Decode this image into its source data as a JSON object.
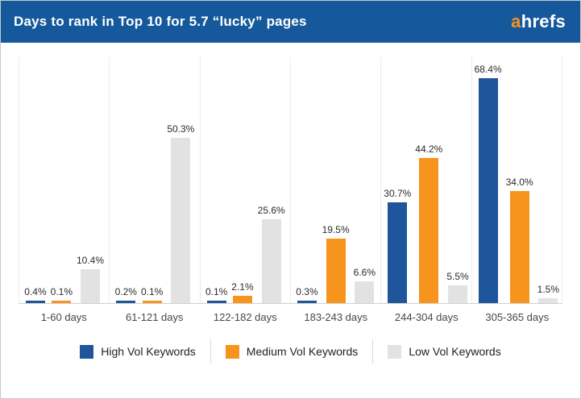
{
  "header": {
    "title": "Days to rank in Top 10 for 5.7 “lucky” pages",
    "logo_a": "a",
    "logo_rest": "hrefs"
  },
  "chart_data": {
    "type": "bar",
    "title": "Days to rank in Top 10 for 5.7 “lucky” pages",
    "categories": [
      "1-60 days",
      "61-121 days",
      "122-182 days",
      "183-243 days",
      "244-304 days",
      "305-365 days"
    ],
    "series": [
      {
        "name": "High Vol Keywords",
        "color": "#1f559b",
        "values": [
          0.4,
          0.2,
          0.1,
          0.3,
          30.7,
          68.4
        ]
      },
      {
        "name": "Medium Vol Keywords",
        "color": "#f7941e",
        "values": [
          0.1,
          0.1,
          2.1,
          19.5,
          44.2,
          34.0
        ]
      },
      {
        "name": "Low Vol Keywords",
        "color": "#e2e2e2",
        "values": [
          10.4,
          50.3,
          25.6,
          6.6,
          5.5,
          1.5
        ]
      }
    ],
    "value_suffix": "%",
    "xlabel": "",
    "ylabel": "",
    "ylim": [
      0,
      75
    ],
    "grid": "vertical-group-separators",
    "legend_position": "bottom",
    "data_labels": true
  },
  "colors": {
    "header_bg": "#15599c",
    "logo_accent": "#f7941e",
    "axis": "#cfcfcf",
    "gridline": "#ececec",
    "label_text": "#2b2b2b",
    "category_text": "#474747"
  }
}
